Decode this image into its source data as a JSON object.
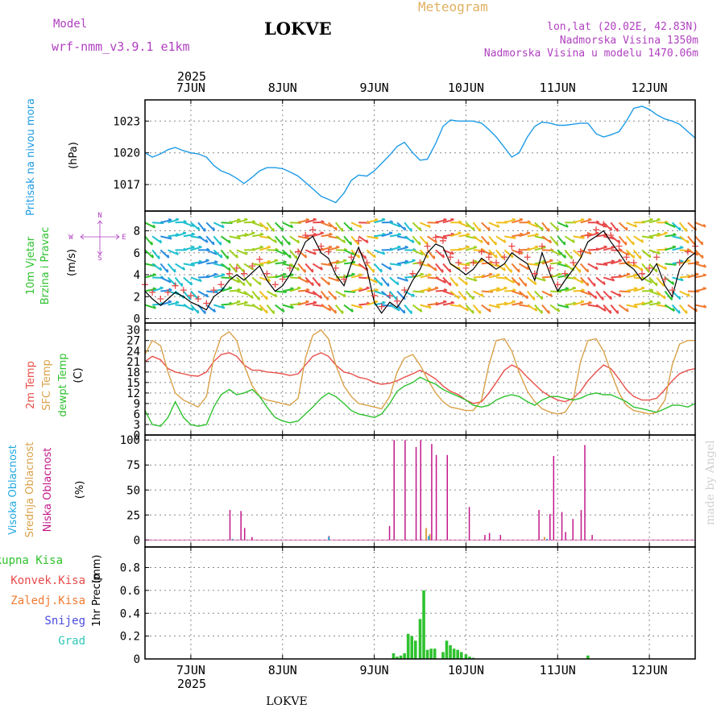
{
  "header": {
    "model_label": "Model",
    "model_name": "wrf-nmm_v3.9.1 e1km",
    "station": "LOKVE",
    "product": "Meteogram",
    "lonlat": "lon,lat (20.02E, 42.83N)",
    "elevation": "Nadmorska Visina 1350m",
    "model_elevation": "Nadmorska Visina u modelu 1470.06m",
    "year": "2025",
    "footer_station": "LOKVE",
    "watermark": "made by Angel"
  },
  "colors": {
    "pressure": "#1e9be6",
    "temp2m": "#e8504a",
    "sfc_temp": "#d9a24a",
    "dewpt": "#2fc22f",
    "high_cloud": "#20a8e0",
    "mid_cloud": "#d9a24a",
    "low_cloud": "#c2188a",
    "total_precip": "#2fc22f",
    "conv_precip": "#e84a4a",
    "frz_precip": "#f07a30",
    "snow": "#4a4ae0",
    "hail": "#2fc8b8",
    "wind_line": "#000000",
    "wind_marker": "#e84a4a",
    "compass": "#b040c0"
  },
  "x_axis": {
    "ticks": [
      "7JUN",
      "8JUN",
      "9JUN",
      "10JUN",
      "11JUN",
      "12JUN"
    ],
    "start_day": 6.5,
    "end_day": 12.5
  },
  "compass": {
    "n": "N",
    "s": "S",
    "e": "E",
    "w": "W"
  },
  "chart_data": [
    {
      "type": "line",
      "panel": "pressure",
      "ylabel_name": "Pritisak na nivou mora",
      "ylabel_unit": "(hPa)",
      "ylim": [
        1014.5,
        1025
      ],
      "yticks": [
        1017,
        1020,
        1023
      ],
      "x": [
        6.5,
        6.58,
        6.67,
        6.75,
        6.83,
        6.92,
        7.0,
        7.08,
        7.17,
        7.25,
        7.33,
        7.42,
        7.5,
        7.58,
        7.67,
        7.75,
        7.83,
        7.92,
        8.0,
        8.08,
        8.17,
        8.25,
        8.33,
        8.42,
        8.5,
        8.58,
        8.67,
        8.75,
        8.83,
        8.92,
        9.0,
        9.08,
        9.17,
        9.25,
        9.33,
        9.42,
        9.5,
        9.58,
        9.67,
        9.75,
        9.83,
        9.92,
        10.0,
        10.08,
        10.17,
        10.25,
        10.33,
        10.42,
        10.5,
        10.58,
        10.67,
        10.75,
        10.83,
        10.92,
        11.0,
        11.08,
        11.17,
        11.25,
        11.33,
        11.42,
        11.5,
        11.58,
        11.67,
        11.75,
        11.83,
        11.92,
        12.0,
        12.08,
        12.17,
        12.25,
        12.33,
        12.42,
        12.5
      ],
      "values": [
        1020,
        1019.6,
        1019.9,
        1020.3,
        1020.5,
        1020.2,
        1020.0,
        1019.9,
        1019.6,
        1018.8,
        1018.3,
        1018.0,
        1017.6,
        1017.1,
        1017.7,
        1018.3,
        1018.6,
        1018.6,
        1018.5,
        1018.2,
        1017.8,
        1017.2,
        1016.6,
        1015.9,
        1015.6,
        1015.3,
        1016.2,
        1017.4,
        1017.9,
        1017.8,
        1018.3,
        1019.0,
        1019.8,
        1020.6,
        1021.0,
        1020.0,
        1019.3,
        1019.4,
        1020.9,
        1022.5,
        1023.1,
        1023.0,
        1023.0,
        1023.0,
        1022.8,
        1022.2,
        1021.5,
        1020.5,
        1019.6,
        1020.0,
        1021.5,
        1022.5,
        1022.9,
        1022.8,
        1022.6,
        1022.6,
        1022.7,
        1022.8,
        1022.8,
        1021.8,
        1021.5,
        1021.7,
        1022.0,
        1023.0,
        1024.2,
        1024.4,
        1024.1,
        1023.6,
        1023.2,
        1023.0,
        1022.7,
        1022.0,
        1021.4
      ]
    },
    {
      "type": "line",
      "panel": "wind",
      "ylabel_name": "10m Vjetar Brzina i Pravac",
      "ylabel_name_1": "10m Vjetar",
      "ylabel_name_2": "Brzina i Pravac",
      "ylabel_unit": "(m/s)",
      "ylim": [
        -0.4,
        9.8
      ],
      "yticks": [
        0,
        2,
        4,
        6,
        8
      ],
      "x": [
        6.5,
        6.58,
        6.67,
        6.75,
        6.83,
        6.92,
        7.0,
        7.08,
        7.17,
        7.25,
        7.33,
        7.42,
        7.5,
        7.58,
        7.67,
        7.75,
        7.83,
        7.92,
        8.0,
        8.08,
        8.17,
        8.25,
        8.33,
        8.42,
        8.5,
        8.58,
        8.67,
        8.75,
        8.83,
        8.92,
        9.0,
        9.08,
        9.17,
        9.25,
        9.33,
        9.42,
        9.5,
        9.58,
        9.67,
        9.75,
        9.83,
        9.92,
        10.0,
        10.08,
        10.17,
        10.25,
        10.33,
        10.42,
        10.5,
        10.58,
        10.67,
        10.75,
        10.83,
        10.92,
        11.0,
        11.08,
        11.17,
        11.25,
        11.33,
        11.42,
        11.5,
        11.58,
        11.67,
        11.75,
        11.83,
        11.92,
        12.0,
        12.08,
        12.17,
        12.25,
        12.33,
        12.42,
        12.5
      ],
      "values": [
        2.5,
        1.8,
        1.2,
        1.8,
        2.4,
        2.0,
        1.5,
        1.2,
        0.8,
        2.0,
        2.5,
        3.5,
        4.0,
        3.5,
        4.2,
        4.8,
        3.5,
        2.5,
        3.0,
        4.0,
        5.5,
        7.0,
        7.5,
        6.0,
        5.5,
        4.0,
        3.0,
        5.0,
        6.5,
        4.5,
        1.5,
        0.5,
        1.5,
        1.0,
        2.0,
        3.5,
        4.5,
        6.0,
        6.8,
        6.5,
        5.0,
        4.5,
        4.0,
        4.5,
        5.5,
        5.0,
        4.5,
        5.0,
        6.0,
        5.5,
        5.0,
        3.5,
        6.0,
        4.0,
        2.5,
        3.5,
        4.5,
        5.5,
        7.0,
        7.5,
        8.0,
        7.0,
        6.0,
        5.0,
        4.5,
        3.5,
        4.0,
        5.0,
        3.0,
        2.0,
        4.5,
        5.5,
        6.0
      ],
      "arrow_rows": [
        1,
        2,
        3,
        4,
        5,
        6,
        7
      ]
    },
    {
      "type": "line",
      "panel": "temperature",
      "ylabel_name_1": "2m Temp",
      "ylabel_name_2": "SFC Temp",
      "ylabel_name_3": "dewpt Temp",
      "ylabel_unit": "(C)",
      "ylim": [
        0,
        32
      ],
      "yticks": [
        0,
        3,
        6,
        9,
        12,
        15,
        18,
        21,
        24,
        27,
        30
      ],
      "x": [
        6.5,
        6.58,
        6.67,
        6.75,
        6.83,
        6.92,
        7.0,
        7.08,
        7.17,
        7.25,
        7.33,
        7.42,
        7.5,
        7.58,
        7.67,
        7.75,
        7.83,
        7.92,
        8.0,
        8.08,
        8.17,
        8.25,
        8.33,
        8.42,
        8.5,
        8.58,
        8.67,
        8.75,
        8.83,
        8.92,
        9.0,
        9.08,
        9.17,
        9.25,
        9.33,
        9.42,
        9.5,
        9.58,
        9.67,
        9.75,
        9.83,
        9.92,
        10.0,
        10.08,
        10.17,
        10.25,
        10.33,
        10.42,
        10.5,
        10.58,
        10.67,
        10.75,
        10.83,
        10.92,
        11.0,
        11.08,
        11.17,
        11.25,
        11.33,
        11.42,
        11.5,
        11.58,
        11.67,
        11.75,
        11.83,
        11.92,
        12.0,
        12.08,
        12.17,
        12.25,
        12.33,
        12.42,
        12.5
      ],
      "series": [
        {
          "name": "2m Temp",
          "color_key": "temp2m",
          "values": [
            21.0,
            22.5,
            21.5,
            19.0,
            18.0,
            17.5,
            17.0,
            16.8,
            18.0,
            21.0,
            23.0,
            23.5,
            22.5,
            20.0,
            18.5,
            18.5,
            18.0,
            17.8,
            17.5,
            17.0,
            17.5,
            20.0,
            22.5,
            23.5,
            22.5,
            20.0,
            18.0,
            17.5,
            16.5,
            16.0,
            15.0,
            14.5,
            14.8,
            15.5,
            16.5,
            17.5,
            18.5,
            17.5,
            16.0,
            14.0,
            12.5,
            11.5,
            10.0,
            9.0,
            9.5,
            12.0,
            15.0,
            18.5,
            20.0,
            19.0,
            16.5,
            14.5,
            12.5,
            11.0,
            10.0,
            9.5,
            10.5,
            12.5,
            15.5,
            18.0,
            20.0,
            19.0,
            16.0,
            13.0,
            11.0,
            10.0,
            10.0,
            10.5,
            13.0,
            15.5,
            17.5,
            18.5,
            19.0
          ]
        },
        {
          "name": "SFC Temp",
          "color_key": "sfc_temp",
          "values": [
            23.0,
            27.0,
            25.5,
            18.0,
            12.0,
            10.0,
            9.0,
            8.0,
            11.0,
            22.0,
            28.0,
            29.5,
            27.0,
            20.0,
            14.0,
            11.0,
            10.0,
            9.5,
            9.0,
            8.5,
            10.5,
            22.0,
            28.5,
            30.0,
            27.5,
            20.0,
            14.0,
            11.0,
            9.0,
            8.5,
            8.0,
            7.5,
            11.0,
            18.0,
            22.0,
            23.0,
            20.0,
            16.0,
            12.0,
            9.5,
            8.0,
            7.5,
            7.0,
            7.0,
            10.0,
            20.0,
            27.0,
            27.5,
            24.0,
            18.0,
            12.5,
            9.5,
            7.5,
            6.5,
            6.0,
            6.5,
            10.0,
            21.0,
            27.0,
            27.5,
            24.0,
            18.0,
            12.0,
            8.5,
            7.0,
            6.5,
            6.0,
            6.5,
            10.0,
            20.0,
            26.0,
            27.0,
            27.0
          ]
        },
        {
          "name": "dewpt Temp",
          "color_key": "dewpt",
          "values": [
            7.0,
            3.0,
            2.5,
            5.0,
            9.5,
            5.0,
            3.0,
            2.5,
            3.0,
            8.0,
            11.5,
            13.0,
            11.5,
            12.0,
            13.0,
            11.0,
            8.0,
            5.0,
            4.0,
            3.5,
            4.0,
            6.0,
            8.0,
            10.5,
            12.0,
            11.0,
            9.0,
            7.0,
            6.0,
            5.5,
            5.0,
            6.0,
            9.0,
            12.5,
            14.0,
            15.0,
            16.5,
            15.5,
            14.5,
            13.0,
            12.0,
            11.0,
            10.0,
            8.5,
            8.0,
            8.5,
            10.0,
            11.0,
            11.5,
            11.0,
            9.5,
            8.5,
            10.0,
            11.0,
            11.0,
            10.5,
            10.0,
            10.5,
            11.5,
            12.0,
            11.5,
            11.5,
            10.5,
            9.5,
            8.0,
            7.5,
            7.0,
            6.5,
            7.5,
            8.5,
            8.5,
            8.0,
            9.0
          ]
        }
      ]
    },
    {
      "type": "bar",
      "panel": "cloud",
      "ylabel_name_1": "Visoka Oblacnost",
      "ylabel_name_2": "Srednja Oblacnost",
      "ylabel_name_3": "Niska Oblacnost",
      "ylabel_unit": "(%)",
      "ylim": [
        -7,
        105
      ],
      "yticks": [
        0,
        25,
        50,
        75,
        100
      ],
      "series": [
        {
          "name": "Niska Oblacnost",
          "color_key": "low_cloud",
          "x": [
            7.42,
            7.54,
            7.58,
            7.66,
            8.5,
            9.16,
            9.21,
            9.33,
            9.45,
            9.5,
            9.62,
            9.67,
            9.79,
            10.03,
            10.2,
            10.25,
            10.37,
            10.79,
            10.91,
            10.95,
            11.04,
            11.08,
            11.16,
            11.25,
            11.29,
            11.37
          ],
          "values": [
            30,
            29,
            12,
            3,
            4,
            14,
            100,
            100,
            93,
            100,
            96,
            85,
            85,
            33,
            5,
            7,
            5,
            30,
            26,
            84,
            28,
            8,
            21,
            30,
            95,
            5
          ]
        },
        {
          "name": "Srednja Oblacnost",
          "color_key": "mid_cloud",
          "x": [
            8.48,
            9.54,
            9.58,
            10.83
          ],
          "values": [
            3,
            12,
            6,
            3
          ]
        },
        {
          "name": "Visoka Oblacnost",
          "color_key": "high_cloud",
          "x": [
            7.41,
            8.46,
            9.55,
            10.84
          ],
          "values": [
            1,
            3,
            4,
            1
          ]
        }
      ]
    },
    {
      "type": "bar",
      "panel": "precip",
      "ylabel_name": "1hr Precip",
      "ylabel_unit": "(mm)",
      "legend": [
        "Ukupna Kisa",
        "Konvek.Kisa",
        "Zaledj.Kisa",
        "Snijeg",
        "Grad"
      ],
      "ylim": [
        0,
        0.98
      ],
      "yticks": [
        0,
        0.2,
        0.4,
        0.6,
        0.8
      ],
      "x": [
        9.21,
        9.25,
        9.29,
        9.33,
        9.37,
        9.41,
        9.45,
        9.5,
        9.54,
        9.58,
        9.62,
        9.66,
        9.75,
        9.79,
        9.83,
        9.87,
        9.91,
        9.95,
        10.0,
        10.04,
        10.08,
        11.33
      ],
      "values": [
        0.05,
        0.02,
        0.03,
        0.05,
        0.22,
        0.2,
        0.16,
        0.35,
        0.6,
        0.08,
        0.09,
        0.09,
        0.06,
        0.16,
        0.12,
        0.09,
        0.08,
        0.06,
        0.04,
        0.02,
        0.01,
        0.03
      ]
    }
  ]
}
